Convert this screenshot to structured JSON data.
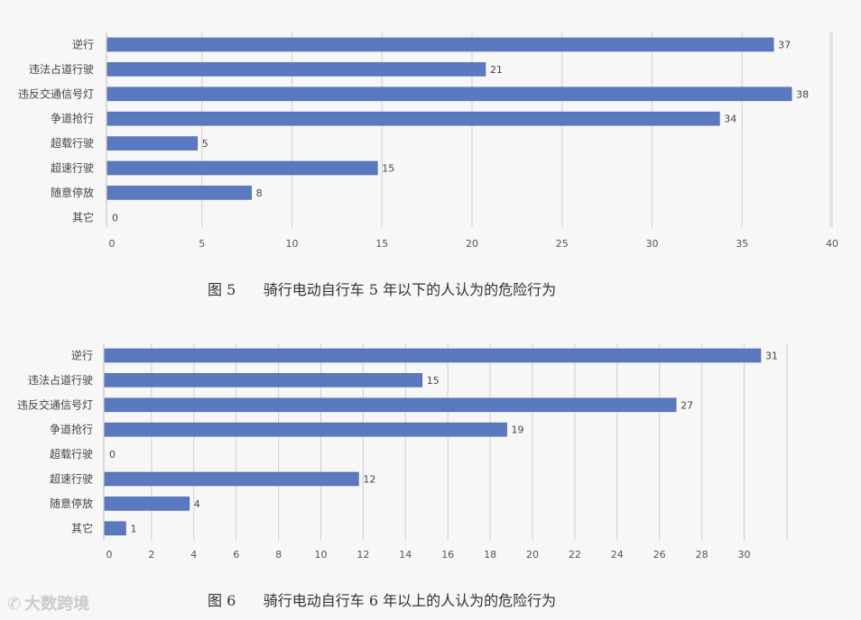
{
  "chart_data": [
    {
      "type": "bar",
      "orientation": "horizontal",
      "categories": [
        "逆行",
        "违法占道行驶",
        "违反交通信号灯",
        "争道抢行",
        "超载行驶",
        "超速行驶",
        "随意停放",
        "其它"
      ],
      "values": [
        37,
        21,
        38,
        34,
        5,
        15,
        8,
        0
      ],
      "xlim": [
        0,
        40
      ],
      "xticks": [
        0,
        5,
        10,
        15,
        20,
        25,
        30,
        35,
        40
      ],
      "grid": true,
      "bar_color": "#5b79bf",
      "caption": "图 5      骑行电动自行车 5 年以下的人认为的危险行为"
    },
    {
      "type": "bar",
      "orientation": "horizontal",
      "categories": [
        "逆行",
        "违法占道行驶",
        "违反交通信号灯",
        "争道抢行",
        "超载行驶",
        "超速行驶",
        "随意停放",
        "其它"
      ],
      "values": [
        31,
        15,
        27,
        19,
        0,
        12,
        4,
        1
      ],
      "xlim": [
        0,
        32
      ],
      "xticks": [
        0,
        2,
        4,
        6,
        8,
        10,
        12,
        14,
        16,
        18,
        20,
        22,
        24,
        26,
        28,
        30
      ],
      "grid": true,
      "bar_color": "#5b79bf",
      "caption": "图 6      骑行电动自行车 6 年以上的人认为的危险行为"
    }
  ],
  "watermark": "大数跨境"
}
